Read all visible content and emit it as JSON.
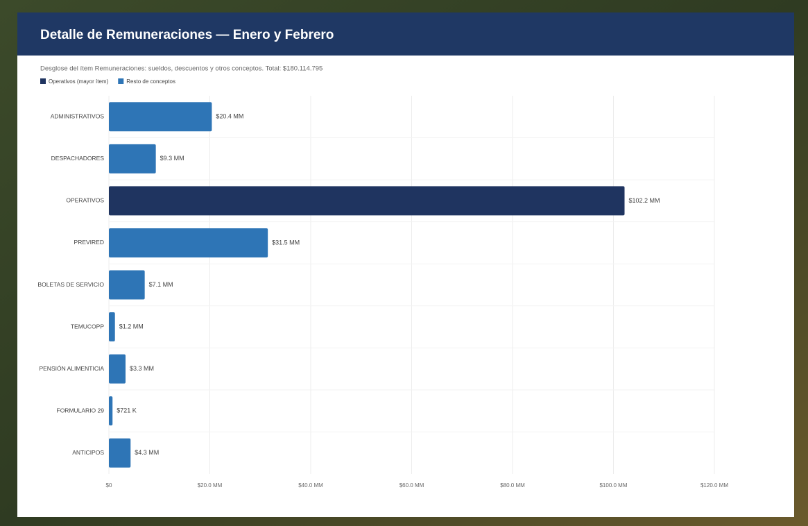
{
  "chart_data": {
    "type": "bar",
    "orientation": "horizontal",
    "title": "Detalle de Remuneraciones — Enero y Febrero",
    "subtitle": "Desglose del ítem Remuneraciones: sueldos, descuentos y otros conceptos. Total: $180.114.795",
    "categories": [
      "ADMINISTRATIVOS",
      "DESPACHADORES",
      "OPERATIVOS",
      "PREVIRED",
      "BOLETAS DE SERVICIO",
      "TEMUCOPP",
      "PENSIÓN ALIMENTICIA",
      "FORMULARIO 29",
      "ANTICIPOS"
    ],
    "series": [
      {
        "name": "Operativos (mayor ítem)",
        "color": "#1f3460",
        "values": [
          null,
          null,
          102200000,
          null,
          null,
          null,
          null,
          null,
          null
        ],
        "value_labels": [
          null,
          null,
          "$102.2 MM",
          null,
          null,
          null,
          null,
          null,
          null
        ]
      },
      {
        "name": "Resto de conceptos",
        "color": "#2e75b6",
        "values": [
          20400000,
          9300000,
          null,
          31500000,
          7100000,
          1200000,
          3300000,
          721000,
          4300000
        ],
        "value_labels": [
          "$20.4 MM",
          "$9.3 MM",
          null,
          "$31.5 MM",
          "$7.1 MM",
          "$1.2 MM",
          "$3.3 MM",
          "$721 K",
          "$4.3 MM"
        ]
      }
    ],
    "xlim": [
      0,
      120000000
    ],
    "xticks": [
      {
        "value": 0,
        "label": "$0"
      },
      {
        "value": 20000000,
        "label": "$20.0 MM"
      },
      {
        "value": 40000000,
        "label": "$40.0 MM"
      },
      {
        "value": 60000000,
        "label": "$60.0 MM"
      },
      {
        "value": 80000000,
        "label": "$80.0 MM"
      },
      {
        "value": 100000000,
        "label": "$100.0 MM"
      },
      {
        "value": 120000000,
        "label": "$120.0 MM"
      }
    ],
    "grid": true,
    "legend": "top-left"
  }
}
